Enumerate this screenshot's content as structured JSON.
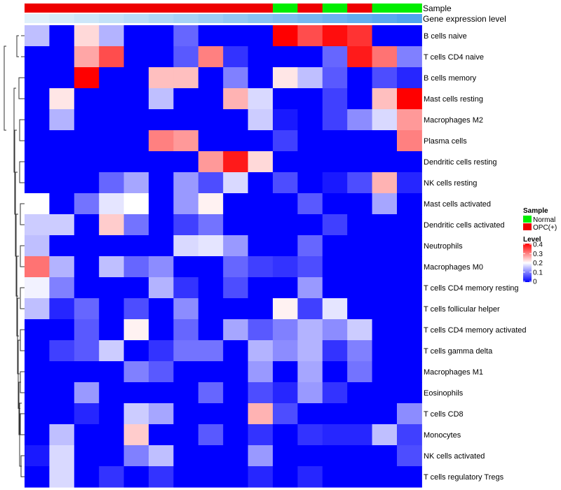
{
  "chart_data": {
    "type": "heatmap",
    "annotation_labels": [
      "Sample",
      "Gene expression level"
    ],
    "rows": [
      "B cells naive",
      "T cells CD4 naive",
      "B cells memory",
      "Mast cells resting",
      "Macrophages M2",
      "Plasma cells",
      "Dendritic cells resting",
      "NK cells resting",
      "Mast cells activated",
      "Dendritic cells activated",
      "Neutrophils",
      "Macrophages M0",
      "T cells CD4 memory resting",
      "T cells follicular helper",
      "T cells CD4 memory activated",
      "T cells gamma delta",
      "Macrophages M1",
      "Eosinophils",
      "T cells CD8",
      "Monocytes",
      "NK cells activated",
      "T cells regulatory  Tregs"
    ],
    "sample_groups": [
      "OPC(+)",
      "OPC(+)",
      "OPC(+)",
      "OPC(+)",
      "OPC(+)",
      "OPC(+)",
      "OPC(+)",
      "OPC(+)",
      "OPC(+)",
      "OPC(+)",
      "Normal",
      "OPC(+)",
      "Normal",
      "OPC(+)",
      "Normal",
      "Normal"
    ],
    "gene_expression_level": [
      0.0,
      0.05,
      0.1,
      0.15,
      0.2,
      0.25,
      0.3,
      0.35,
      0.4,
      0.45,
      0.5,
      0.55,
      0.6,
      0.65,
      0.7,
      0.75
    ],
    "values": [
      [
        0.15,
        0.0,
        0.23,
        0.14,
        0.0,
        0.0,
        0.08,
        0.0,
        0.0,
        0.0,
        0.4,
        0.34,
        0.39,
        0.36,
        0.0,
        0.0
      ],
      [
        0.0,
        0.0,
        0.27,
        0.34,
        0.0,
        0.0,
        0.07,
        0.3,
        0.04,
        0.0,
        0.0,
        0.0,
        0.08,
        0.38,
        0.31,
        0.1
      ],
      [
        0.0,
        0.0,
        0.4,
        0.0,
        0.0,
        0.25,
        0.25,
        0.0,
        0.1,
        0.0,
        0.22,
        0.15,
        0.07,
        0.0,
        0.06,
        0.03
      ],
      [
        0.0,
        0.22,
        0.0,
        0.0,
        0.0,
        0.15,
        0.0,
        0.0,
        0.26,
        0.17,
        0.0,
        0.0,
        0.05,
        0.0,
        0.25,
        0.4
      ],
      [
        0.0,
        0.14,
        0.0,
        0.0,
        0.0,
        0.0,
        0.0,
        0.0,
        0.0,
        0.16,
        0.02,
        0.0,
        0.05,
        0.11,
        0.17,
        0.28
      ],
      [
        0.0,
        0.0,
        0.0,
        0.0,
        0.0,
        0.3,
        0.28,
        0.0,
        0.0,
        0.0,
        0.05,
        0.0,
        0.0,
        0.0,
        0.0,
        0.3
      ],
      [
        0.0,
        0.0,
        0.0,
        0.0,
        0.0,
        0.0,
        0.0,
        0.28,
        0.38,
        0.23,
        0.0,
        0.0,
        0.0,
        0.0,
        0.0,
        0.0
      ],
      [
        0.0,
        0.0,
        0.0,
        0.08,
        0.13,
        0.0,
        0.12,
        0.06,
        0.17,
        0.0,
        0.06,
        0.0,
        0.02,
        0.06,
        0.26,
        0.03
      ],
      [
        0.2,
        0.0,
        0.09,
        0.18,
        0.2,
        0.0,
        0.12,
        0.21,
        0.0,
        0.0,
        0.0,
        0.07,
        0.0,
        0.0,
        0.13,
        0.0
      ],
      [
        0.16,
        0.16,
        0.0,
        0.24,
        0.09,
        0.0,
        0.05,
        0.09,
        0.0,
        0.0,
        0.0,
        0.0,
        0.05,
        0.0,
        0.0,
        0.0
      ],
      [
        0.15,
        0.0,
        0.0,
        0.0,
        0.0,
        0.0,
        0.17,
        0.18,
        0.12,
        0.0,
        0.0,
        0.08,
        0.0,
        0.0,
        0.0,
        0.0
      ],
      [
        0.31,
        0.14,
        0.0,
        0.15,
        0.08,
        0.11,
        0.0,
        0.0,
        0.08,
        0.05,
        0.04,
        0.06,
        0.0,
        0.0,
        0.0,
        0.0
      ],
      [
        0.19,
        0.1,
        0.0,
        0.0,
        0.0,
        0.14,
        0.04,
        0.0,
        0.06,
        0.0,
        0.0,
        0.12,
        0.0,
        0.0,
        0.0,
        0.0
      ],
      [
        0.15,
        0.03,
        0.08,
        0.0,
        0.06,
        0.0,
        0.11,
        0.0,
        0.0,
        0.0,
        0.21,
        0.05,
        0.18,
        0.0,
        0.0,
        0.0
      ],
      [
        0.0,
        0.0,
        0.07,
        0.0,
        0.21,
        0.0,
        0.08,
        0.0,
        0.13,
        0.07,
        0.1,
        0.14,
        0.11,
        0.16,
        0.0,
        0.0
      ],
      [
        0.0,
        0.05,
        0.07,
        0.16,
        0.0,
        0.04,
        0.09,
        0.09,
        0.0,
        0.14,
        0.11,
        0.14,
        0.04,
        0.1,
        0.0,
        0.0
      ],
      [
        0.0,
        0.0,
        0.0,
        0.0,
        0.1,
        0.07,
        0.0,
        0.0,
        0.0,
        0.12,
        0.0,
        0.13,
        0.0,
        0.09,
        0.0,
        0.0
      ],
      [
        0.0,
        0.0,
        0.12,
        0.0,
        0.0,
        0.0,
        0.0,
        0.08,
        0.0,
        0.06,
        0.03,
        0.12,
        0.04,
        0.0,
        0.0,
        0.0
      ],
      [
        0.0,
        0.0,
        0.03,
        0.0,
        0.16,
        0.13,
        0.0,
        0.0,
        0.0,
        0.26,
        0.06,
        0.0,
        0.0,
        0.0,
        0.0,
        0.11
      ],
      [
        0.0,
        0.15,
        0.0,
        0.0,
        0.24,
        0.0,
        0.0,
        0.07,
        0.0,
        0.04,
        0.0,
        0.04,
        0.03,
        0.03,
        0.15,
        0.05
      ],
      [
        0.02,
        0.17,
        0.0,
        0.0,
        0.1,
        0.15,
        0.0,
        0.0,
        0.0,
        0.12,
        0.0,
        0.0,
        0.0,
        0.0,
        0.0,
        0.06
      ],
      [
        0.0,
        0.17,
        0.0,
        0.04,
        0.0,
        0.04,
        0.0,
        0.0,
        0.0,
        0.03,
        0.0,
        0.03,
        0.0,
        0.0,
        0.0,
        0.0
      ]
    ],
    "legend_sample": {
      "title": "Sample",
      "entries": [
        {
          "label": "Normal",
          "color": "#00ee00"
        },
        {
          "label": "OPC(+)",
          "color": "#ee0000"
        }
      ]
    },
    "legend_level": {
      "title": "Level",
      "ticks": [
        "0.4",
        "0.3",
        "0.2",
        "0.1",
        "0"
      ],
      "range": [
        0,
        0.4
      ]
    },
    "colors": {
      "low": "#0000ff",
      "mid": "#ffffff",
      "high": "#ff0000",
      "normal": "#00ee00",
      "opc": "#ee0000",
      "expr_low": "#e0f0fb",
      "expr_high": "#4ea4ee",
      "dendrogram": "#333333"
    }
  }
}
